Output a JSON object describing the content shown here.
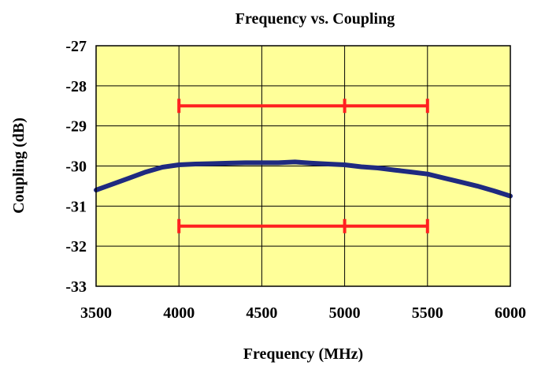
{
  "chart_data": {
    "type": "line",
    "title": "Frequency vs. Coupling",
    "xlabel": "Frequency (MHz)",
    "ylabel": "Coupling (dB)",
    "xlim": [
      3500,
      6000
    ],
    "ylim": [
      -33,
      -27
    ],
    "xticks": [
      3500,
      4000,
      4500,
      5000,
      5500,
      6000
    ],
    "yticks": [
      -27,
      -28,
      -29,
      -30,
      -31,
      -32,
      -33
    ],
    "grid": true,
    "plot_background": "#FFFF99",
    "series": [
      {
        "color": "#1F2A80",
        "x": [
          3500,
          3600,
          3700,
          3800,
          3900,
          4000,
          4100,
          4200,
          4300,
          4400,
          4500,
          4600,
          4700,
          4800,
          4900,
          5000,
          5100,
          5200,
          5300,
          5400,
          5500,
          5600,
          5700,
          5800,
          5900,
          6000
        ],
        "y": [
          -30.6,
          -30.45,
          -30.3,
          -30.15,
          -30.03,
          -29.97,
          -29.95,
          -29.94,
          -29.93,
          -29.92,
          -29.92,
          -29.92,
          -29.9,
          -29.93,
          -29.95,
          -29.97,
          -30.02,
          -30.05,
          -30.1,
          -30.15,
          -30.2,
          -30.3,
          -30.4,
          -30.5,
          -30.62,
          -30.75
        ]
      }
    ],
    "spec_limits": [
      {
        "color": "#FF2020",
        "y": -28.5,
        "x_start": 4000,
        "x_end": 5500,
        "ticks": [
          4000,
          5000,
          5500
        ]
      },
      {
        "color": "#FF2020",
        "y": -31.5,
        "x_start": 4000,
        "x_end": 5500,
        "ticks": [
          4000,
          5000,
          5500
        ]
      }
    ]
  }
}
